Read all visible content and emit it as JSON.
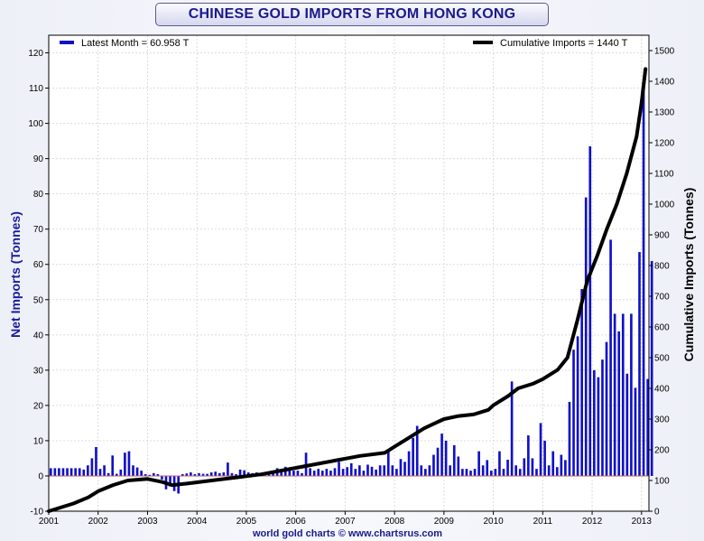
{
  "chart_data": {
    "type": "bar",
    "title": "CHINESE GOLD IMPORTS FROM HONG KONG",
    "ylabel": "Net Imports (Tonnes)",
    "y2label": "Cumulative Imports (Tonnes)",
    "footer": "world gold charts © www.chartsrus.com",
    "xlim": [
      2001,
      2013.15
    ],
    "ylim": [
      -10,
      125
    ],
    "y2lim": [
      0,
      1550
    ],
    "xticks": [
      "2001",
      "2002",
      "2003",
      "2004",
      "2005",
      "2006",
      "2007",
      "2008",
      "2009",
      "2010",
      "2011",
      "2012",
      "2013"
    ],
    "yticks": [
      "-10",
      "0",
      "10",
      "20",
      "30",
      "40",
      "50",
      "60",
      "70",
      "80",
      "90",
      "100",
      "110",
      "120"
    ],
    "y2ticks": [
      "0",
      "100",
      "200",
      "300",
      "400",
      "500",
      "600",
      "700",
      "800",
      "900",
      "1000",
      "1100",
      "1200",
      "1300",
      "1400",
      "1500"
    ],
    "grid": true,
    "legend": [
      {
        "label": "Latest Month = 60.958 T",
        "position": "top-left",
        "color": "#1010c8"
      },
      {
        "label": "Cumulative Imports  = 1440 T",
        "position": "top-right",
        "color": "#000000"
      }
    ],
    "bar_color": "#1010c8",
    "line_color": "#000000",
    "start_year": 2001,
    "series": [
      {
        "type": "bar",
        "values": [
          2.2,
          2.2,
          2.2,
          2.2,
          2.2,
          2.2,
          2.2,
          2.2,
          1.8,
          3.0,
          5.0,
          8.2,
          2.0,
          3.0,
          0.8,
          5.8,
          0.6,
          1.8,
          6.6,
          7.0,
          3.0,
          2.4,
          1.5,
          0.5,
          0.3,
          0.8,
          0.5,
          -1.0,
          -3.8,
          -3.0,
          -4.3,
          -5.0,
          0.5,
          0.7,
          1.0,
          0.5,
          0.8,
          0.6,
          0.6,
          1.0,
          1.2,
          0.8,
          1.0,
          3.8,
          0.8,
          0.5,
          1.8,
          1.6,
          1.0,
          0.8,
          1.0,
          0.6,
          1.0,
          0.8,
          1.5,
          2.2,
          1.5,
          2.6,
          2.0,
          1.5,
          1.5,
          0.8,
          6.6,
          2.2,
          1.5,
          2.0,
          1.5,
          2.0,
          1.5,
          2.2,
          4.0,
          2.0,
          2.5,
          3.6,
          2.0,
          3.0,
          1.5,
          3.2,
          2.6,
          1.8,
          3.0,
          3.0,
          7.0,
          3.0,
          2.0,
          4.8,
          4.0,
          7.0,
          10.8,
          14.2,
          3.0,
          2.0,
          3.0,
          6.0,
          8.0,
          12.0,
          10.0,
          3.0,
          8.7,
          5.5,
          2.0,
          2.0,
          1.5,
          2.0,
          7.0,
          3.0,
          4.5,
          1.5,
          2.0,
          7.0,
          2.0,
          4.6,
          26.8,
          3.0,
          2.0,
          5.0,
          11.5,
          5.0,
          2.0,
          15.0,
          10.0,
          3.0,
          7.0,
          2.5,
          6.0,
          4.5,
          21.0,
          35.8,
          39.6,
          53.0,
          79.0,
          93.5,
          30.0,
          28.0,
          33.0,
          38.0,
          67.0,
          46.0,
          41.0,
          46.0,
          29.0,
          46.0,
          25.0,
          63.5,
          110.0,
          27.5,
          60.958
        ]
      },
      {
        "type": "line",
        "name": "Cumulative Imports",
        "x": [
          2001.0,
          2001.5,
          2001.8,
          2002.0,
          2002.3,
          2002.6,
          2003.0,
          2003.3,
          2003.5,
          2003.8,
          2004.3,
          2004.8,
          2005.3,
          2005.8,
          2006.3,
          2006.8,
          2007.3,
          2007.8,
          2008.0,
          2008.3,
          2008.6,
          2008.8,
          2009.0,
          2009.3,
          2009.6,
          2009.9,
          2010.0,
          2010.3,
          2010.5,
          2010.8,
          2011.0,
          2011.3,
          2011.5,
          2011.7,
          2011.9,
          2012.1,
          2012.3,
          2012.5,
          2012.7,
          2012.9,
          2013.0,
          2013.08
        ],
        "values": [
          0,
          25,
          45,
          65,
          85,
          100,
          105,
          95,
          85,
          90,
          100,
          110,
          120,
          135,
          150,
          165,
          180,
          190,
          210,
          240,
          270,
          285,
          300,
          310,
          315,
          330,
          345,
          375,
          400,
          415,
          430,
          460,
          500,
          620,
          750,
          830,
          920,
          1000,
          1100,
          1220,
          1330,
          1440
        ]
      }
    ]
  }
}
